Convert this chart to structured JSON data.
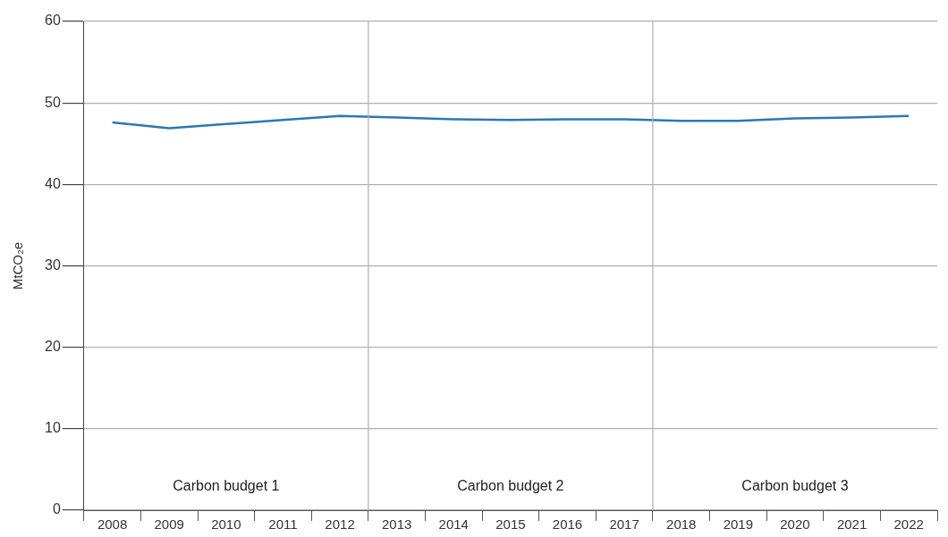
{
  "chart_data": {
    "type": "line",
    "ylabel": "MtCO₂e",
    "x": [
      2008,
      2009,
      2010,
      2011,
      2012,
      2013,
      2014,
      2015,
      2016,
      2017,
      2018,
      2019,
      2020,
      2021,
      2022
    ],
    "series": [
      {
        "color": "#2a78b4",
        "values": [
          47.6,
          46.9,
          47.4,
          47.9,
          48.4,
          48.2,
          48.0,
          47.9,
          48.0,
          48.0,
          47.8,
          47.8,
          48.1,
          48.2,
          48.4
        ]
      }
    ],
    "xlim": [
      2007.5,
      2022.5
    ],
    "xticks": [
      {
        "value": 2007.5,
        "label": null
      },
      2008,
      {
        "value": 2008.5,
        "label": null
      },
      2009,
      {
        "value": 2009.5,
        "label": null
      },
      2010,
      {
        "value": 2010.5,
        "label": null
      },
      2011,
      {
        "value": 2011.5,
        "label": null
      },
      2012,
      {
        "value": 2012.5,
        "label": null
      },
      2013,
      {
        "value": 2013.5,
        "label": null
      },
      2014,
      {
        "value": 2014.5,
        "label": null
      },
      2015,
      {
        "value": 2015.5,
        "label": null
      },
      2016,
      {
        "value": 2016.5,
        "label": null
      },
      2017,
      {
        "value": 2017.5,
        "label": null
      },
      2018,
      {
        "value": 2018.5,
        "label": null
      },
      2019,
      {
        "value": 2019.5,
        "label": null
      },
      2020,
      {
        "value": 2020.5,
        "label": null
      },
      2021,
      {
        "value": 2021.5,
        "label": null
      },
      2022,
      {
        "value": 2022.5,
        "label": null
      }
    ],
    "ylim": [
      0,
      60
    ],
    "yticks": [
      0,
      10,
      20,
      30,
      40,
      50,
      60
    ],
    "grid": "y",
    "legend": false,
    "marker": "none",
    "line_style": "solid",
    "ref_lines": [
      {
        "axis": "x",
        "value": 2012.5,
        "color": "#b0b0b0"
      },
      {
        "axis": "x",
        "value": 2017.5,
        "color": "#b0b0b0"
      }
    ],
    "annotations": [
      "Carbon budget 1",
      "Carbon budget 2",
      "Carbon budget 3"
    ]
  }
}
